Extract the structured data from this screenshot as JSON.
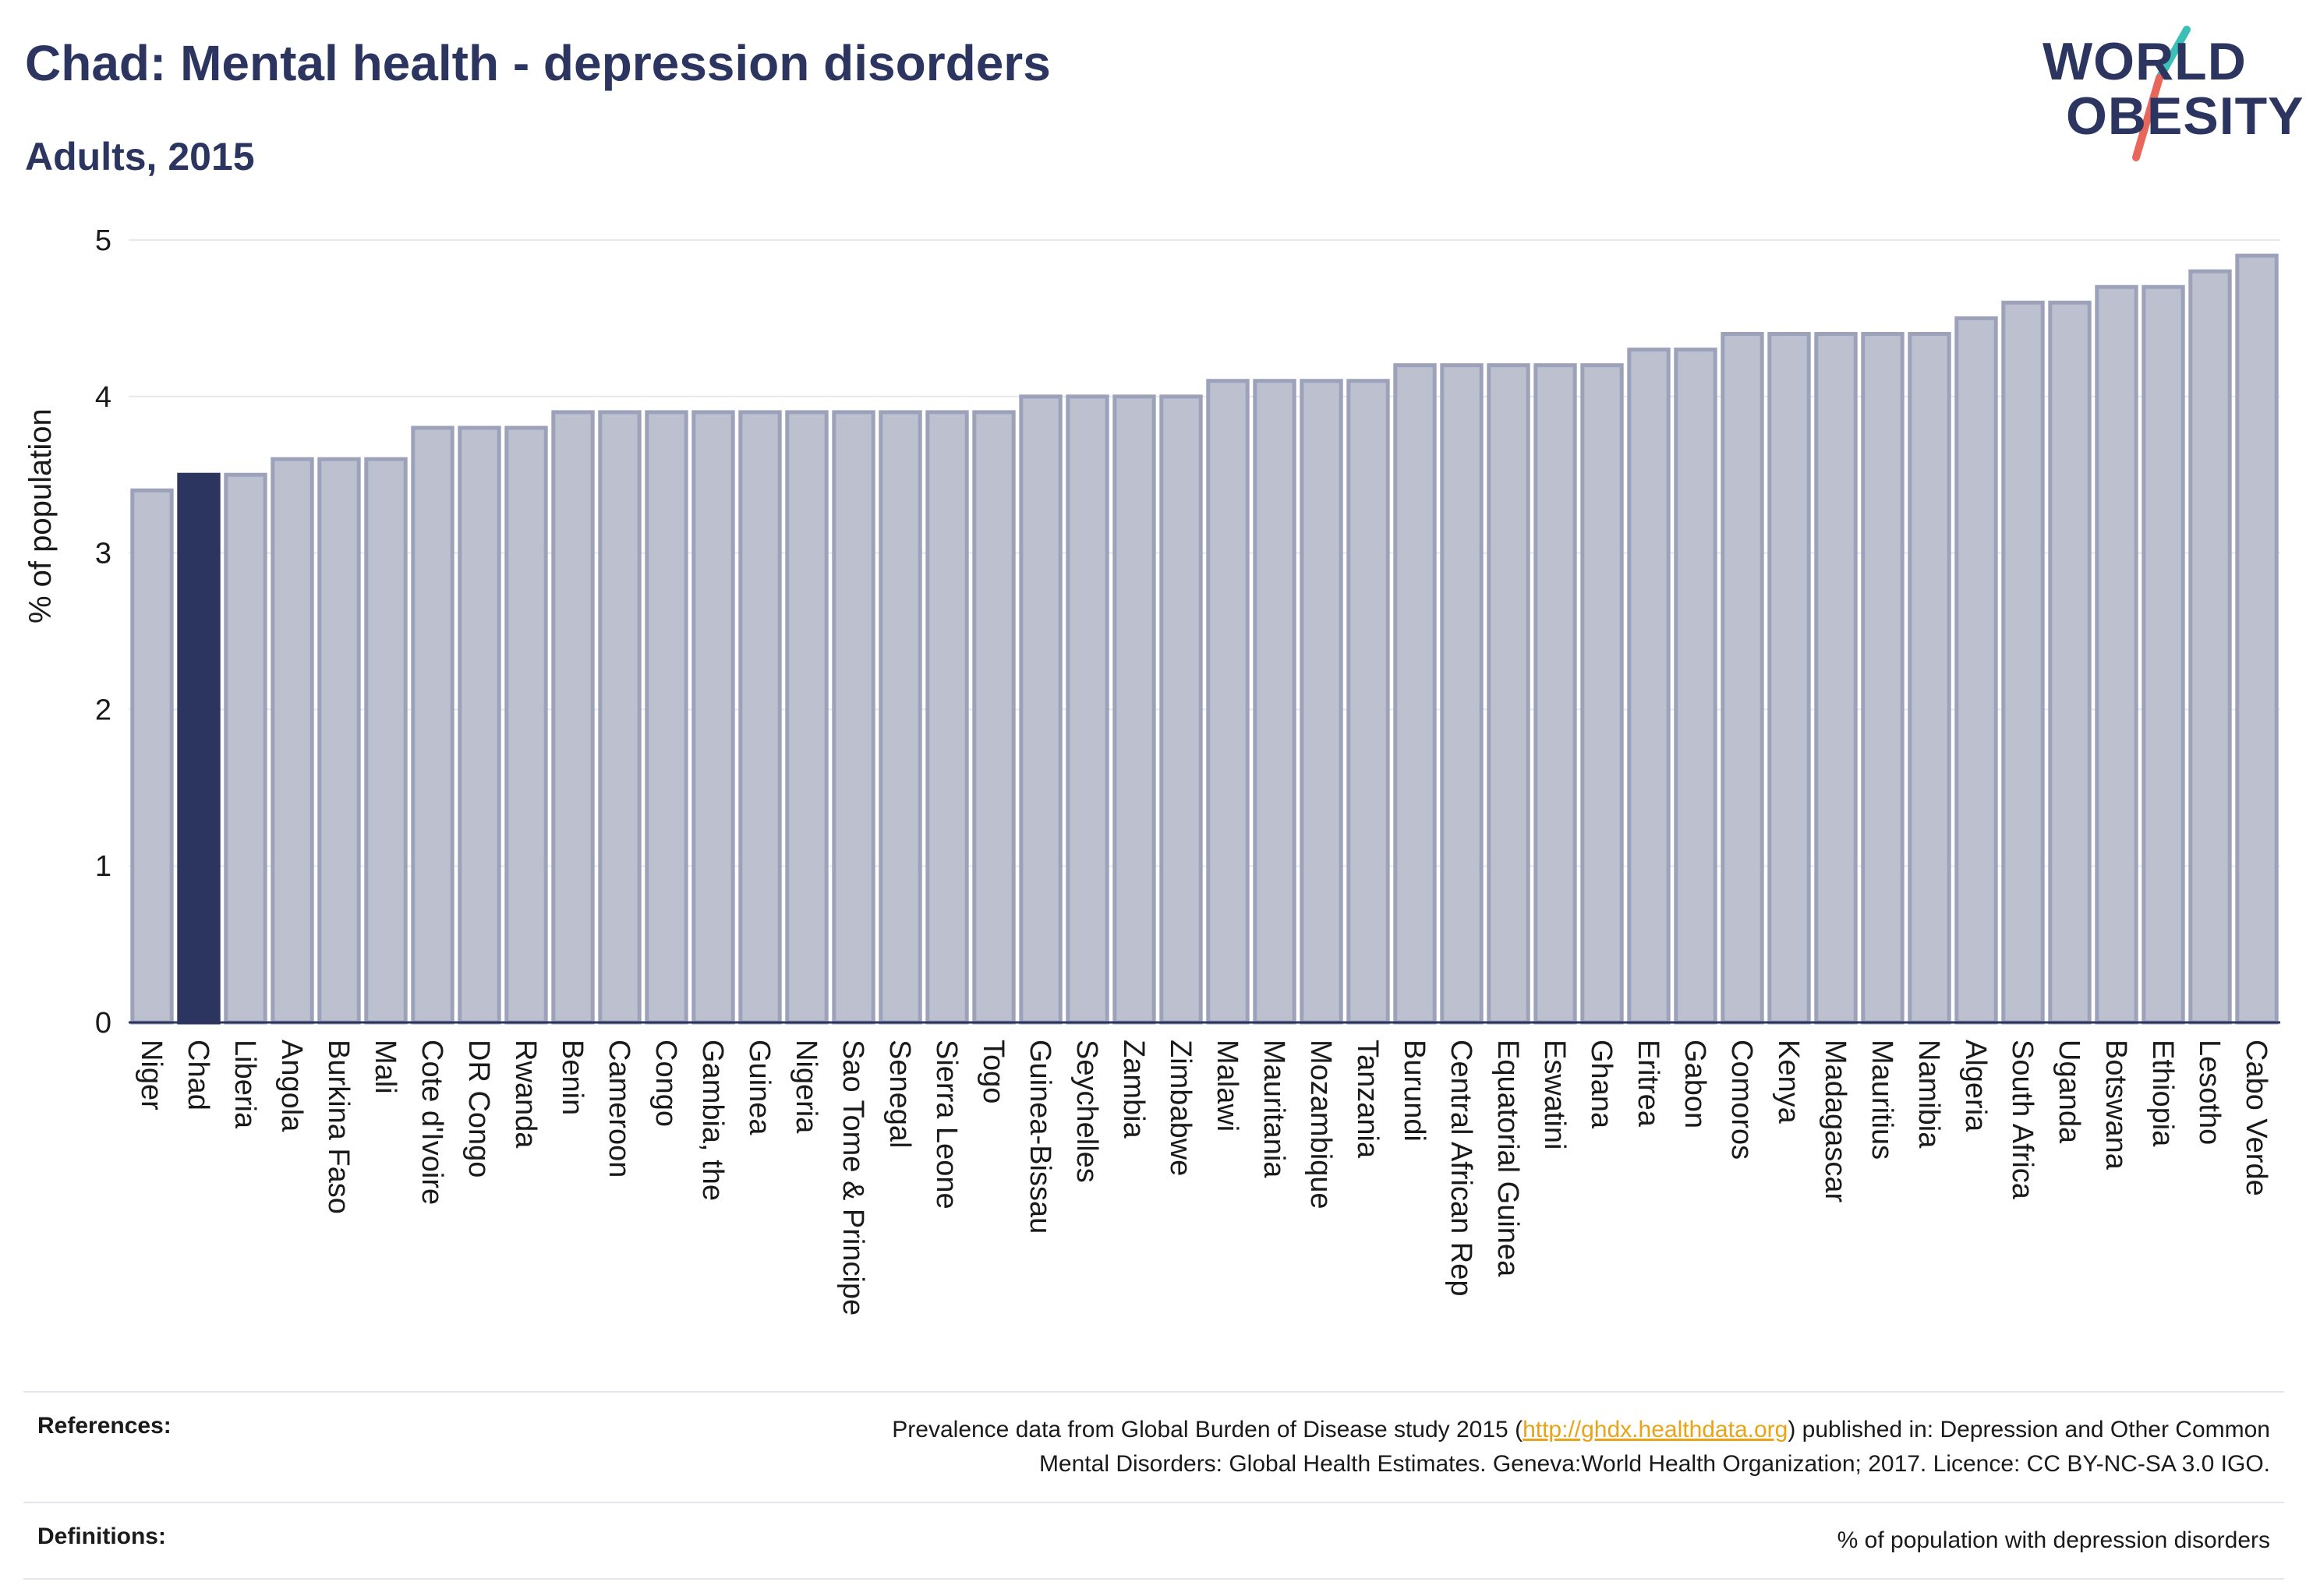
{
  "header": {
    "title": "Chad: Mental health - depression disorders",
    "subtitle": "Adults, 2015"
  },
  "logo": {
    "line1": "WORLD",
    "line2": "OBESITY",
    "accent_teal": "#3bbfb7",
    "accent_coral": "#e8675a"
  },
  "colors": {
    "bar_default": "#bcc0cf",
    "bar_border": "#9ca2ba",
    "bar_highlight": "#2c3560",
    "axis": "#2c3560",
    "grid": "#e6e8ee"
  },
  "chart_data": {
    "type": "bar",
    "ylabel": "% of population",
    "ylim": [
      0,
      5
    ],
    "yticks": [
      0,
      1,
      2,
      3,
      4,
      5
    ],
    "grid": true,
    "highlight": "Chad",
    "categories": [
      "Niger",
      "Chad",
      "Liberia",
      "Angola",
      "Burkina Faso",
      "Mali",
      "Cote d'Ivoire",
      "DR Congo",
      "Rwanda",
      "Benin",
      "Cameroon",
      "Congo",
      "Gambia, the",
      "Guinea",
      "Nigeria",
      "Sao Tome & Principe",
      "Senegal",
      "Sierra Leone",
      "Togo",
      "Guinea-Bissau",
      "Seychelles",
      "Zambia",
      "Zimbabwe",
      "Malawi",
      "Mauritania",
      "Mozambique",
      "Tanzania",
      "Burundi",
      "Central African Rep",
      "Equatorial Guinea",
      "Eswatini",
      "Ghana",
      "Eritrea",
      "Gabon",
      "Comoros",
      "Kenya",
      "Madagascar",
      "Mauritius",
      "Namibia",
      "Algeria",
      "South Africa",
      "Uganda",
      "Botswana",
      "Ethiopia",
      "Lesotho",
      "Cabo Verde"
    ],
    "values": [
      3.4,
      3.5,
      3.5,
      3.6,
      3.6,
      3.6,
      3.8,
      3.8,
      3.8,
      3.9,
      3.9,
      3.9,
      3.9,
      3.9,
      3.9,
      3.9,
      3.9,
      3.9,
      3.9,
      4.0,
      4.0,
      4.0,
      4.0,
      4.1,
      4.1,
      4.1,
      4.1,
      4.2,
      4.2,
      4.2,
      4.2,
      4.2,
      4.3,
      4.3,
      4.4,
      4.4,
      4.4,
      4.4,
      4.4,
      4.5,
      4.6,
      4.6,
      4.7,
      4.7,
      4.8,
      4.9
    ]
  },
  "references": {
    "label": "References:",
    "text_before": "Prevalence data from Global Burden of Disease study 2015 (",
    "link": "http://ghdx.healthdata.org",
    "text_after": ") published in: Depression and Other Common",
    "line2": "Mental Disorders: Global Health Estimates. Geneva:World Health Organization; 2017. Licence: CC BY-NC-SA 3.0 IGO."
  },
  "definitions": {
    "label": "Definitions:",
    "text": "% of population with depression disorders"
  }
}
